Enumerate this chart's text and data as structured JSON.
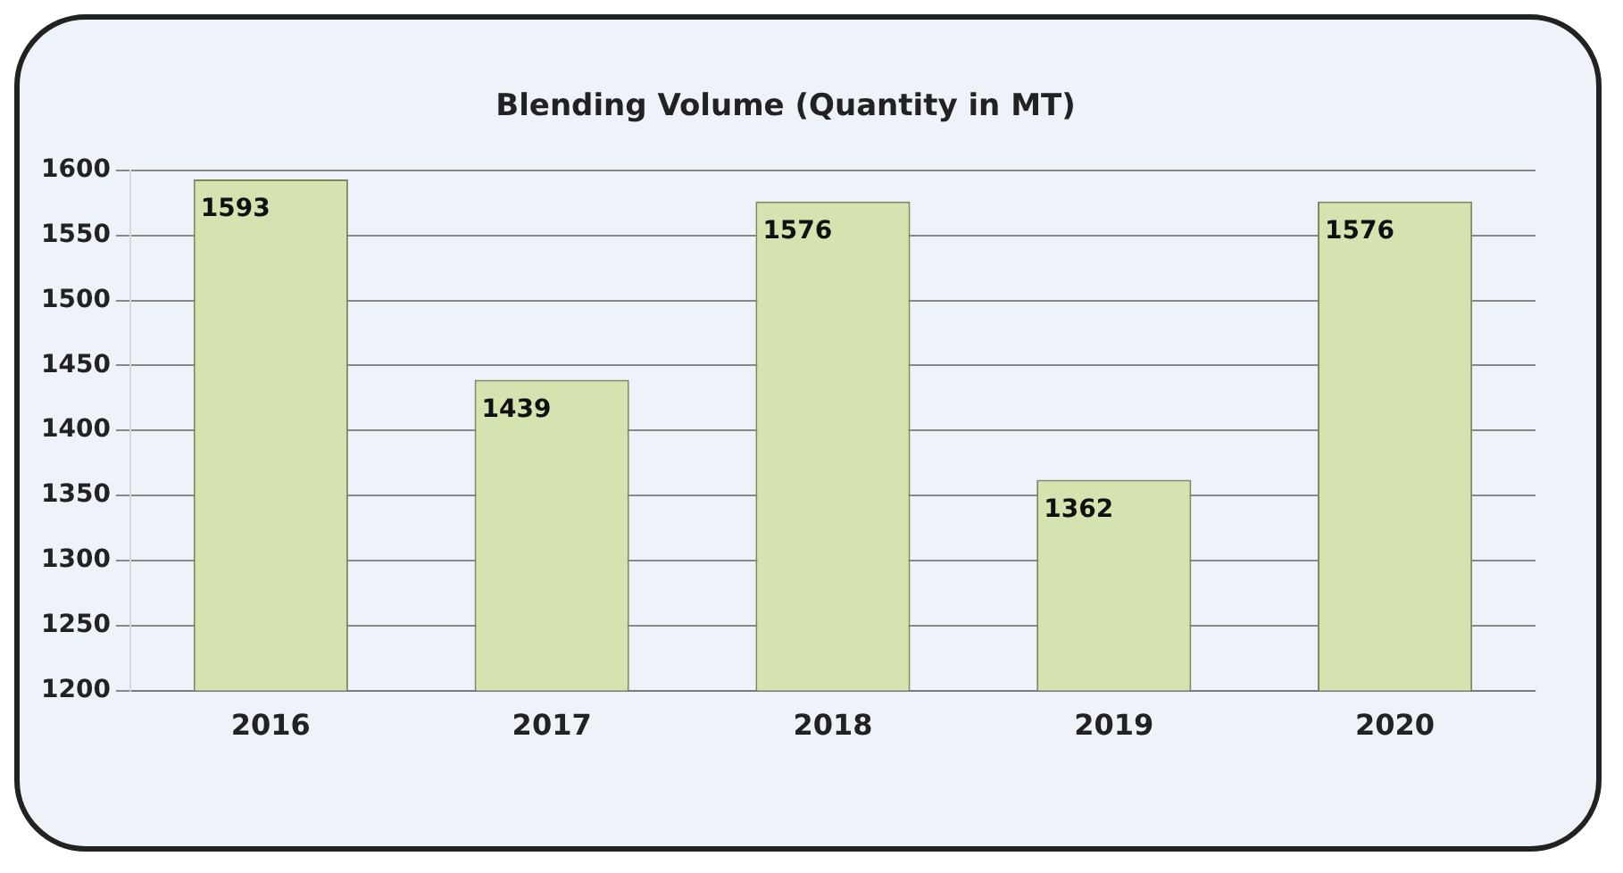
{
  "chart_data": {
    "type": "bar",
    "title": "Blending Volume (Quantity in MT)",
    "categories": [
      "2016",
      "2017",
      "2018",
      "2019",
      "2020"
    ],
    "values": [
      1593,
      1439,
      1576,
      1362,
      1576
    ],
    "color": "#d5e3b0",
    "ylim": [
      1200,
      1600
    ],
    "yticks": [
      1200,
      1250,
      1300,
      1350,
      1400,
      1450,
      1500,
      1550,
      1600
    ],
    "grid": "y",
    "data_labels": true
  }
}
